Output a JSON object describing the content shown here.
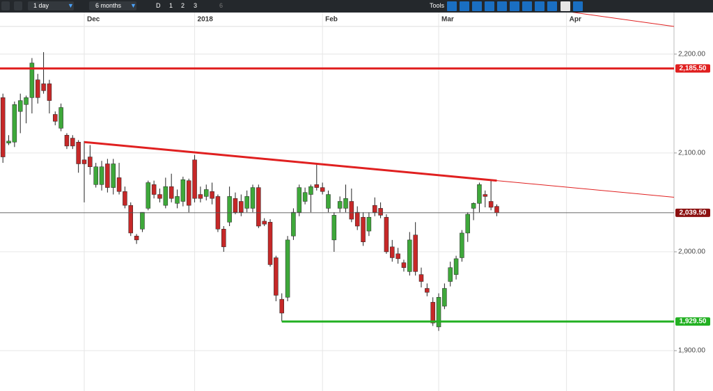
{
  "toolbar": {
    "interval": "1 day",
    "range": "6 months",
    "buttons": [
      "D",
      "1",
      "2",
      "3",
      "6"
    ],
    "tools": "Tools"
  },
  "chart_data": {
    "type": "candlestick",
    "categories": [
      null,
      null,
      null,
      null,
      null,
      null,
      null,
      null,
      null,
      null,
      null,
      null,
      null,
      null,
      "Dec",
      null,
      null,
      null,
      null,
      null,
      null,
      null,
      null,
      null,
      null,
      null,
      null,
      null,
      null,
      null,
      null,
      null,
      null,
      "2018",
      null,
      null,
      null,
      null,
      null,
      null,
      null,
      null,
      null,
      null,
      null,
      null,
      null,
      null,
      null,
      null,
      null,
      null,
      null,
      null,
      null,
      "Feb",
      null,
      null,
      null,
      null,
      null,
      null,
      null,
      null,
      null,
      null,
      null,
      null,
      null,
      null,
      null,
      null,
      null,
      null,
      null,
      "Mar",
      null,
      null,
      null,
      null,
      null,
      null,
      null,
      null,
      null,
      null,
      null,
      null,
      null,
      null,
      null,
      null,
      null,
      null,
      null,
      null,
      null,
      "Apr",
      null,
      null,
      null,
      null,
      null,
      null,
      null,
      null,
      null,
      null,
      null,
      null,
      null,
      null,
      null,
      null,
      null,
      null
    ],
    "open": [
      2156,
      2110,
      2111,
      2142,
      2149,
      2156,
      2174,
      2170,
      2170,
      2139,
      2125,
      2118,
      2115,
      2111,
      2093,
      2096,
      2068,
      2068,
      2089,
      2065,
      2075,
      2061,
      2047,
      2016,
      2023,
      2044,
      2068,
      2058,
      2047,
      2066,
      2049,
      2051,
      2072,
      2093,
      2058,
      2056,
      2061,
      2056,
      2023,
      2030,
      2054,
      2051,
      2044,
      2044,
      2065,
      2031,
      2030,
      1994,
      1952,
      1954,
      2016,
      2040,
      2051,
      2058,
      2068,
      2065,
      2044,
      2012,
      2044,
      2044,
      2051,
      2040,
      2035,
      2021,
      2047,
      2044,
      2035,
      2005,
      1998,
      1989,
      1980,
      2017,
      1977,
      1963,
      1949,
      1924,
      1945,
      1970,
      1977,
      1994,
      2019,
      2044,
      2049,
      2058,
      2051,
      2046,
      null,
      null,
      null,
      null,
      null,
      null,
      null,
      null,
      null,
      null,
      null,
      null,
      null,
      null,
      null,
      null,
      null,
      null,
      null,
      null,
      null,
      null,
      null,
      null,
      null,
      null,
      null,
      null,
      null,
      null
    ],
    "high": [
      2160,
      2118,
      2152,
      2160,
      2158,
      2196,
      2180,
      2202,
      2174,
      2142,
      2150,
      2120,
      2118,
      2113,
      2112,
      2108,
      2090,
      2092,
      2094,
      2094,
      2090,
      2066,
      2050,
      2018,
      2040,
      2072,
      2072,
      2064,
      2075,
      2079,
      2063,
      2076,
      2074,
      2098,
      2066,
      2068,
      2070,
      2058,
      2026,
      2066,
      2060,
      2058,
      2062,
      2068,
      2068,
      2034,
      2033,
      1996,
      1958,
      2016,
      2044,
      2068,
      2065,
      2068,
      2089,
      2070,
      2062,
      2040,
      2056,
      2068,
      2064,
      2046,
      2040,
      2040,
      2055,
      2050,
      2038,
      2012,
      2004,
      1992,
      2020,
      2030,
      1984,
      1968,
      1954,
      1958,
      1968,
      1990,
      1996,
      2022,
      2040,
      2050,
      2070,
      2062,
      2072,
      2048,
      null,
      null,
      null,
      null,
      null,
      null,
      null,
      null,
      null,
      null,
      null,
      null,
      null,
      null,
      null,
      null,
      null,
      null,
      null,
      null,
      null,
      null,
      null,
      null,
      null,
      null,
      null,
      null,
      null,
      null
    ],
    "low": [
      2090,
      2108,
      2106,
      2120,
      2130,
      2140,
      2150,
      2160,
      2140,
      2128,
      2122,
      2104,
      2104,
      2080,
      2050,
      2078,
      2065,
      2062,
      2060,
      2058,
      2058,
      2044,
      2016,
      2008,
      2020,
      2042,
      2054,
      2050,
      2044,
      2050,
      2044,
      2046,
      2040,
      2050,
      2050,
      2052,
      2048,
      2020,
      2000,
      2026,
      2038,
      2036,
      2040,
      2040,
      2024,
      2026,
      1985,
      1950,
      1929.5,
      1950,
      2012,
      2036,
      2048,
      2040,
      2062,
      2058,
      2040,
      2000,
      2040,
      2040,
      2030,
      2022,
      2006,
      2016,
      2036,
      2034,
      1998,
      1990,
      1988,
      1980,
      1976,
      1976,
      1964,
      1955,
      1925,
      1920,
      1942,
      1965,
      1972,
      1990,
      2010,
      2032,
      2040,
      2045,
      2042,
      2036,
      null,
      null,
      null,
      null,
      null,
      null,
      null,
      null,
      null,
      null,
      null,
      null,
      null,
      null,
      null,
      null,
      null,
      null,
      null,
      null,
      null,
      null,
      null,
      null,
      null,
      null,
      null,
      null,
      null,
      null
    ],
    "close": [
      2096,
      2112,
      2149,
      2153,
      2156,
      2191,
      2156,
      2163,
      2153,
      2132,
      2146,
      2107,
      2107,
      2089,
      2089,
      2086,
      2086,
      2086,
      2065,
      2089,
      2061,
      2047,
      2019,
      2012,
      2040,
      2070,
      2058,
      2054,
      2066,
      2054,
      2056,
      2073,
      2047,
      2054,
      2054,
      2063,
      2054,
      2023,
      2005,
      2056,
      2040,
      2040,
      2056,
      2065,
      2026,
      2028,
      1987,
      1956,
      1938,
      2012,
      2040,
      2065,
      2060,
      2066,
      2065,
      2061,
      2058,
      2037,
      2051,
      2054,
      2033,
      2026,
      2010,
      2035,
      2040,
      2037,
      2000,
      1994,
      1993,
      1984,
      2012,
      1980,
      1970,
      1959,
      1928,
      1954,
      1963,
      1984,
      1993,
      2019,
      2038,
      2049,
      2068,
      2056,
      2045,
      2039.5,
      null,
      null,
      null,
      null,
      null,
      null,
      null,
      null,
      null,
      null,
      null,
      null,
      null,
      null,
      null,
      null,
      null,
      null,
      null,
      null,
      null,
      null,
      null,
      null,
      null,
      null,
      null,
      null,
      null,
      null
    ],
    "up_color": "#3ea83a",
    "down_color": "#c62828",
    "ylim": [
      1862,
      2228
    ],
    "yticks": [
      {
        "value": 1900,
        "label": "1,900.00"
      },
      {
        "value": 2000,
        "label": "2,000.00"
      },
      {
        "value": 2100,
        "label": "2,100.00"
      },
      {
        "value": 2200,
        "label": "2,200.00"
      }
    ],
    "grid": true,
    "levels": [
      {
        "value": 2185.5,
        "label": "2,185.50",
        "color": "#e02020",
        "from": 0
      },
      {
        "value": 1929.5,
        "label": "1,929.50",
        "color": "#22b022",
        "from": 48
      },
      {
        "value": 2039.5,
        "label": "2,039.50",
        "color": "#8b1010",
        "from": 0
      }
    ],
    "trendlines": [
      {
        "x": [
          14,
          85
        ],
        "y": [
          2111,
          2072
        ],
        "color": "#e02020",
        "width": 3,
        "extend": true
      },
      {
        "x": [
          96,
          116
        ],
        "y": [
          2244,
          2228
        ],
        "color": "#e02020",
        "width": 1,
        "extend": false
      }
    ]
  }
}
